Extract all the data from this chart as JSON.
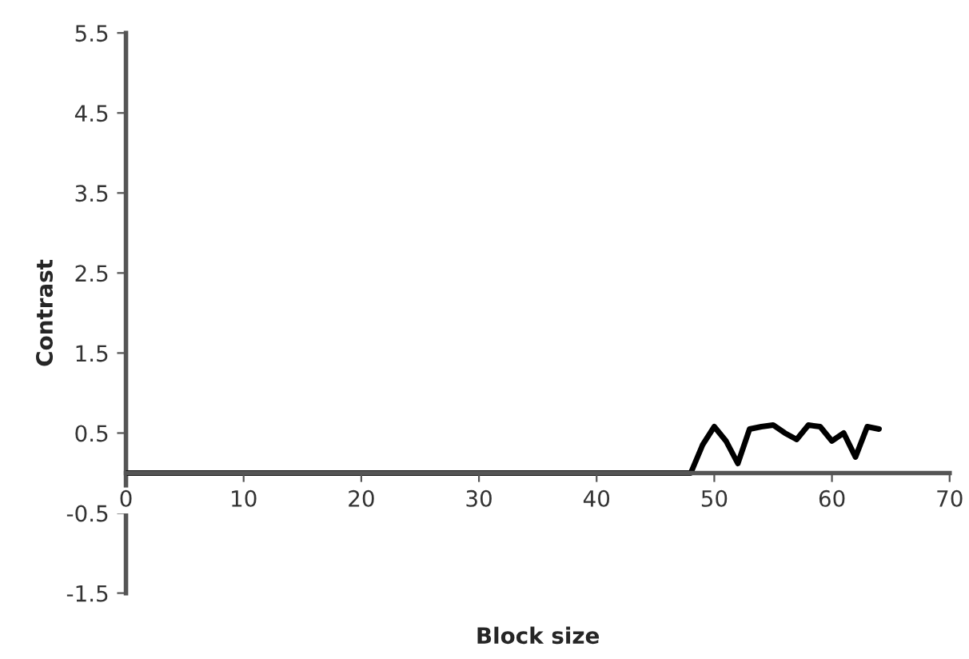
{
  "chart_data": {
    "type": "line",
    "xlabel": "Block size",
    "ylabel": "Contrast",
    "x": [
      0,
      5,
      10,
      15,
      20,
      25,
      30,
      35,
      40,
      45,
      47,
      48,
      49,
      50,
      51,
      52,
      53,
      54,
      55,
      56,
      57,
      58,
      59,
      60,
      61,
      62,
      63,
      64
    ],
    "series": [
      {
        "color": "#000000",
        "values": [
          0,
          0,
          0,
          0,
          0,
          0,
          0,
          0,
          0,
          0,
          0,
          0,
          0.35,
          0.58,
          0.4,
          0.12,
          0.55,
          0.58,
          0.6,
          0.5,
          0.42,
          0.6,
          0.58,
          0.4,
          0.5,
          0.2,
          0.58,
          0.55
        ]
      }
    ],
    "xlim": [
      0,
      70
    ],
    "xticks": [
      0,
      10,
      20,
      30,
      40,
      50,
      60,
      70
    ],
    "ylim": [
      -1.5,
      5.5
    ],
    "yticks": [
      -1.5,
      -0.5,
      0.5,
      1.5,
      2.5,
      3.5,
      4.5,
      5.5
    ],
    "grid": false,
    "legend": false,
    "marker": "none",
    "line_style": "solid"
  }
}
